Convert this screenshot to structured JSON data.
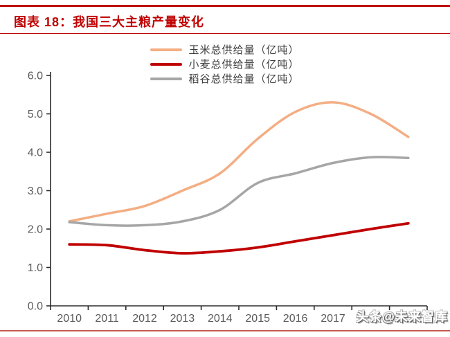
{
  "header": {
    "title": "图表 18：我国三大主粮产量变化"
  },
  "footer": {
    "watermark": "头条@未来智库"
  },
  "colors": {
    "accent_red": "#C00000",
    "bottom_rule": "#C9574F",
    "axis_line": "#2B2B2B",
    "tick_text": "#595959",
    "legend_text": "#3D3D3D",
    "background": "#FFFFFF"
  },
  "chart_data": {
    "type": "line",
    "smoothed": true,
    "grid": false,
    "legend_position": "top-center",
    "title": "图表 18：我国三大主粮产量变化",
    "xlabel": "",
    "ylabel": "",
    "categories": [
      2010,
      2011,
      2012,
      2013,
      2014,
      2015,
      2016,
      2017,
      2018,
      2019
    ],
    "x_tick_labels": [
      "2010",
      "2011",
      "2012",
      "2013",
      "2014",
      "2015",
      "2016",
      "2017"
    ],
    "ylim": [
      0,
      6
    ],
    "y_tick_labels": [
      "0.0",
      "1.0",
      "2.0",
      "3.0",
      "4.0",
      "5.0",
      "6.0"
    ],
    "series": [
      {
        "name": "玉米总供给量（亿吨）",
        "color": "#F3AE84",
        "stroke_width": 3.5,
        "values": [
          2.2,
          2.4,
          2.6,
          3.0,
          3.45,
          4.35,
          5.05,
          5.3,
          5.0,
          4.4
        ]
      },
      {
        "name": "小麦总供给量（亿吨）",
        "color": "#C00000",
        "stroke_width": 3.8,
        "values": [
          1.6,
          1.58,
          1.45,
          1.37,
          1.42,
          1.52,
          1.68,
          1.84,
          2.0,
          2.15
        ]
      },
      {
        "name": "稻谷总供给量（亿吨）",
        "color": "#A6A6A6",
        "stroke_width": 3.5,
        "values": [
          2.18,
          2.1,
          2.1,
          2.2,
          2.5,
          3.2,
          3.45,
          3.72,
          3.87,
          3.85
        ]
      }
    ]
  }
}
